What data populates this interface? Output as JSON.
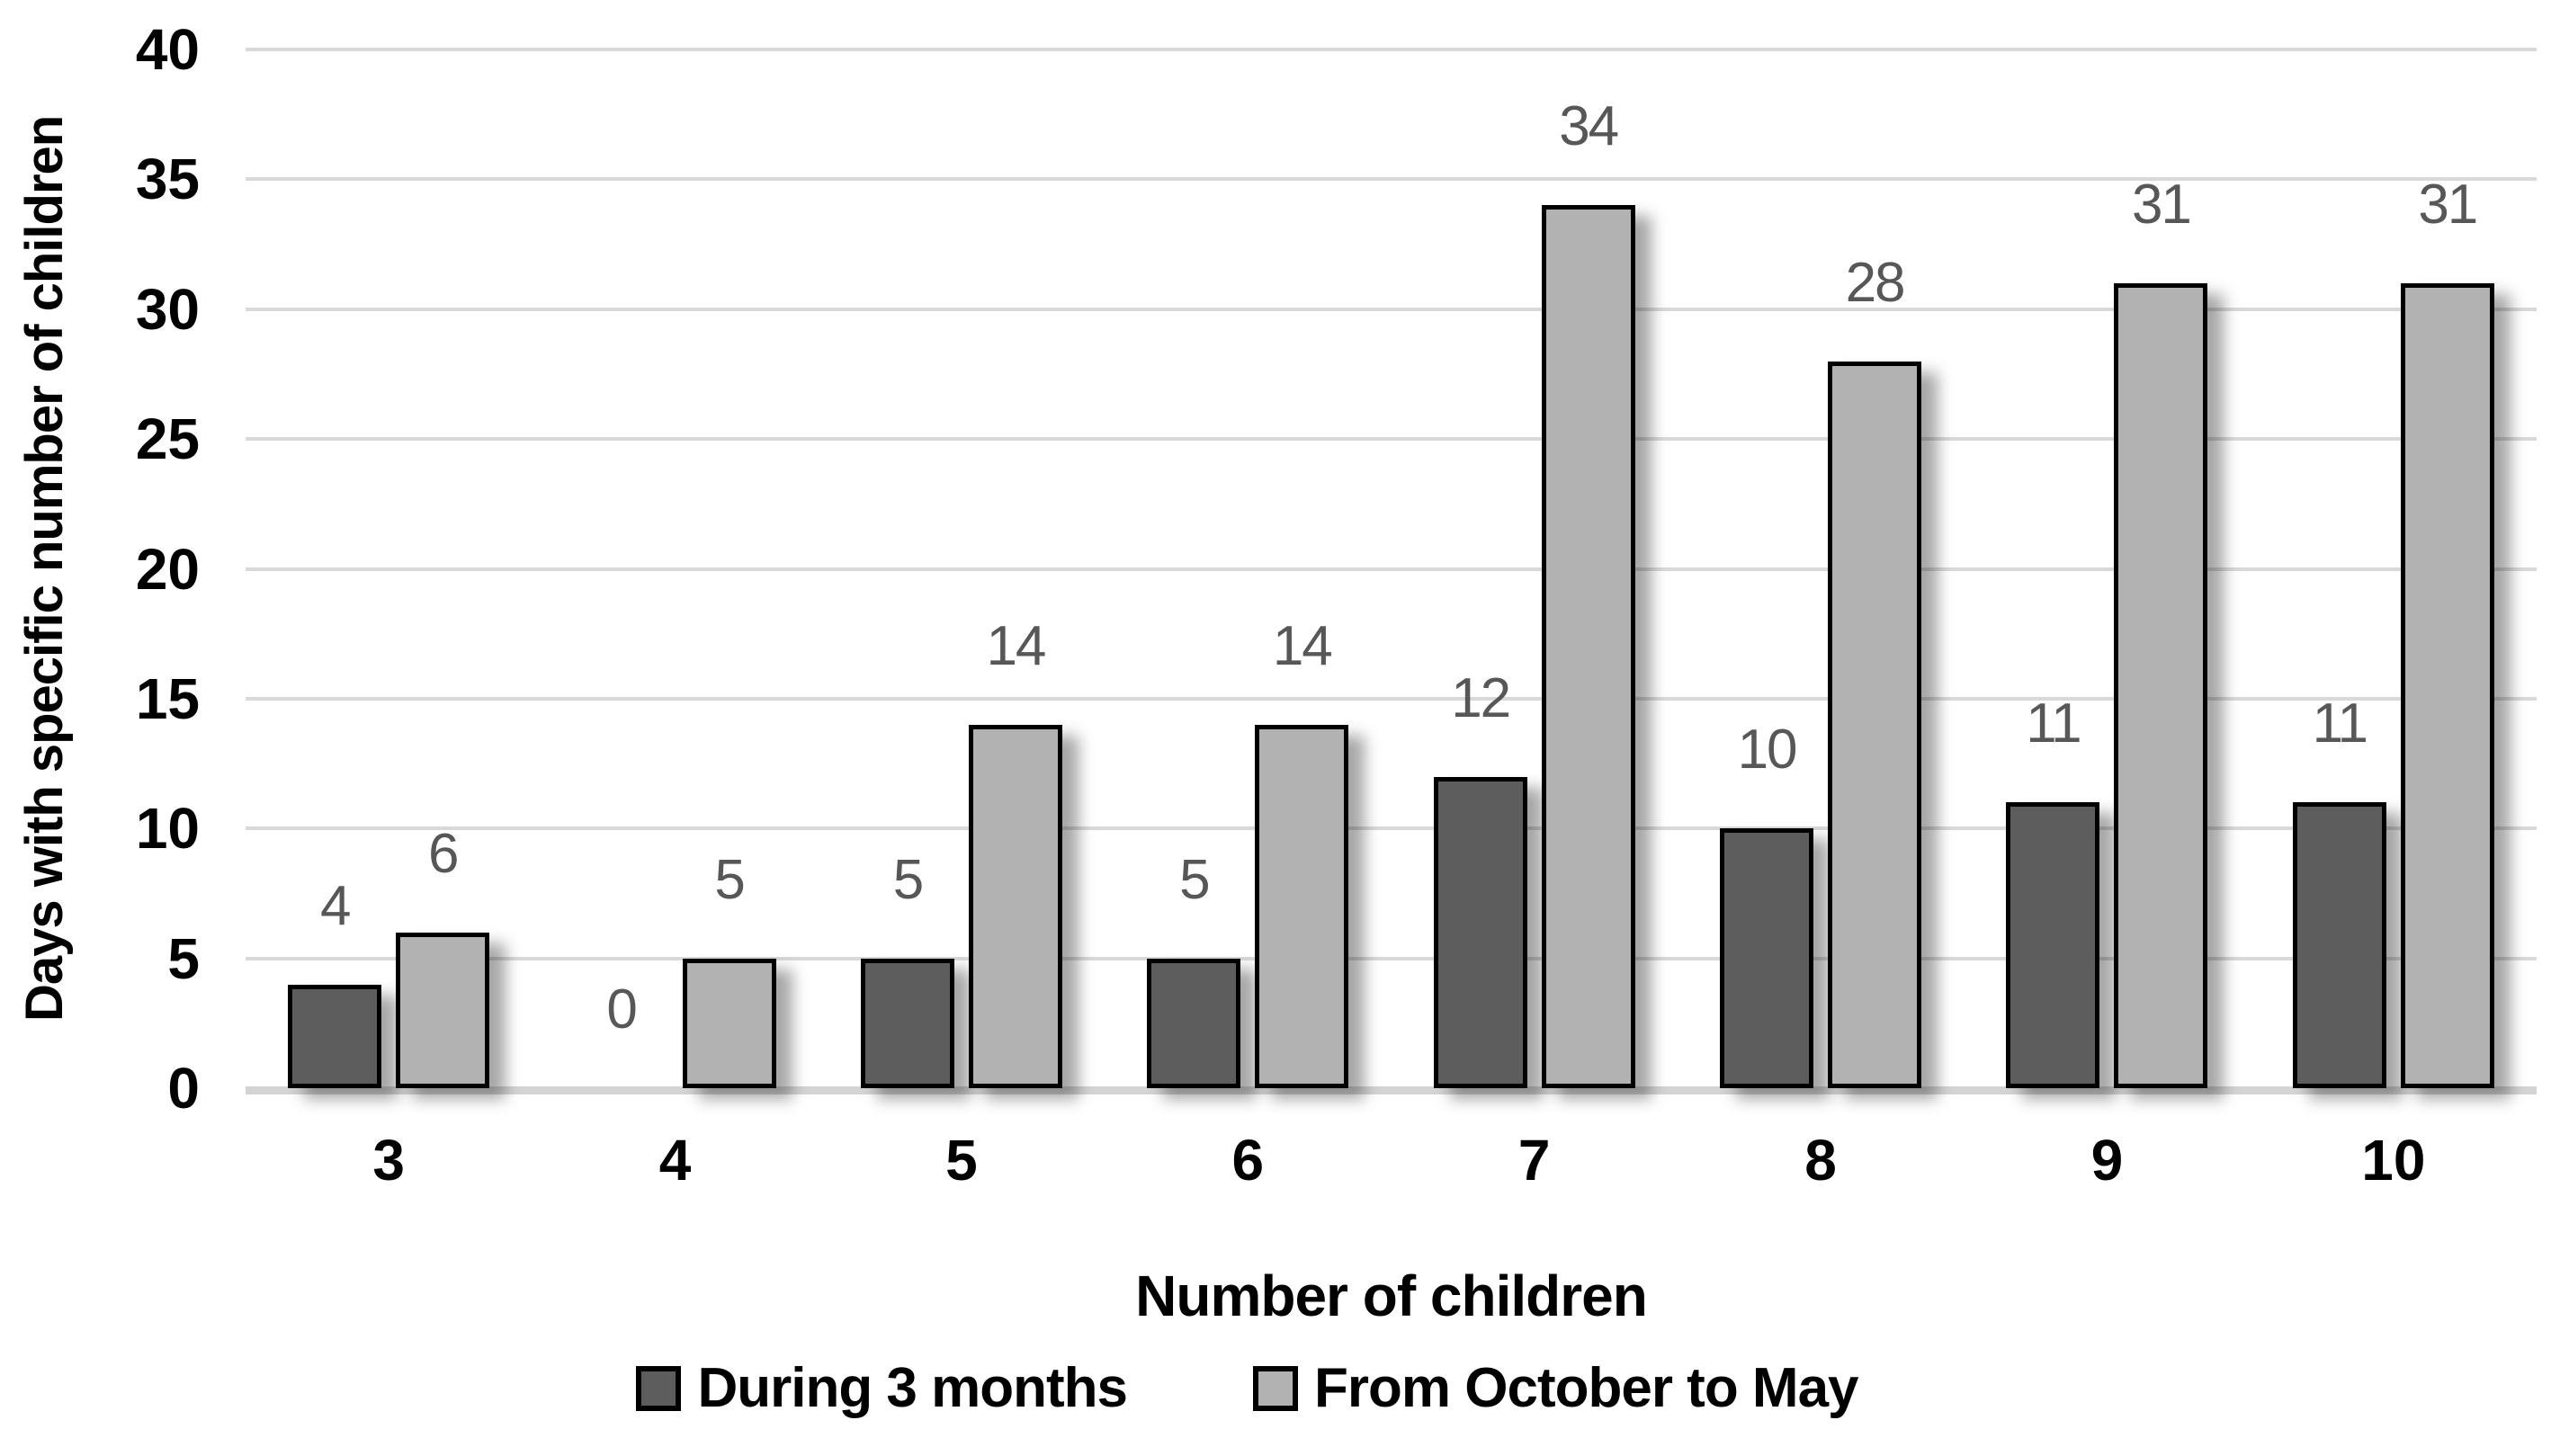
{
  "chart_data": {
    "type": "bar",
    "title": "",
    "xlabel": "Number of children",
    "ylabel": "Days with specific number of children",
    "categories": [
      "3",
      "4",
      "5",
      "6",
      "7",
      "8",
      "9",
      "10"
    ],
    "series": [
      {
        "name": "During 3 months",
        "color": "#5d5d5d",
        "values": [
          4,
          0,
          5,
          5,
          12,
          10,
          11,
          11
        ]
      },
      {
        "name": "From October to May",
        "color": "#b2b2b2",
        "values": [
          6,
          5,
          14,
          14,
          34,
          28,
          31,
          31
        ]
      }
    ],
    "ylim": [
      0,
      40
    ],
    "yticks": [
      0,
      5,
      10,
      15,
      20,
      25,
      30,
      35,
      40
    ],
    "grid": true,
    "legend_position": "bottom",
    "value_labels_shown": true,
    "colors": {
      "bar_outline": "#000000",
      "gridline": "#d9d9d9",
      "value_label": "#575757",
      "axis_text": "#000000"
    }
  }
}
